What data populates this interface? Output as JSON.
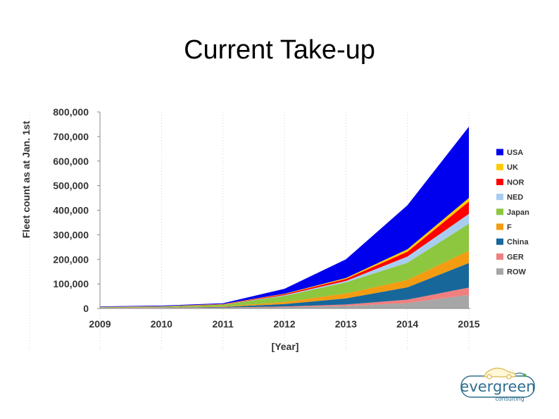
{
  "slide": {
    "title": "Current Take-up"
  },
  "logo": {
    "wordmark": "evergreen",
    "sub": "consulting",
    "icon": "car-icon",
    "colors": {
      "text": "#2f6f8f",
      "car": "#d9b84a",
      "plug": "#4caf50"
    }
  },
  "chart_data": {
    "type": "area",
    "stacked": true,
    "title": "",
    "xlabel": "[Year]",
    "ylabel": "Fleet count as at Jan. 1st",
    "x": [
      "2009",
      "2010",
      "2011",
      "2012",
      "2013",
      "2014",
      "2015"
    ],
    "ylim": [
      0,
      800000
    ],
    "yticks": [
      "0",
      "100,000",
      "200,000",
      "300,000",
      "400,000",
      "500,000",
      "600,000",
      "700,000",
      "800,000"
    ],
    "grid": "vertical dotted",
    "legend": "right",
    "series": [
      {
        "name": "ROW",
        "color": "#a6a6a6",
        "values": [
          2000,
          2500,
          3000,
          5000,
          10000,
          22000,
          55000
        ]
      },
      {
        "name": "GER",
        "color": "#f08080",
        "values": [
          500,
          800,
          1000,
          3000,
          6000,
          14000,
          30000
        ]
      },
      {
        "name": "China",
        "color": "#17679a",
        "values": [
          500,
          800,
          2000,
          10000,
          25000,
          50000,
          100000
        ]
      },
      {
        "name": "F",
        "color": "#f39c12",
        "values": [
          500,
          800,
          2000,
          8000,
          20000,
          30000,
          50000
        ]
      },
      {
        "name": "Japan",
        "color": "#8dc63f",
        "values": [
          2000,
          3000,
          7000,
          25000,
          45000,
          70000,
          110000
        ]
      },
      {
        "name": "NED",
        "color": "#a9cdf0",
        "values": [
          100,
          200,
          500,
          3000,
          6000,
          25000,
          40000
        ]
      },
      {
        "name": "NOR",
        "color": "#ff0000",
        "values": [
          500,
          800,
          1500,
          4000,
          8000,
          20000,
          50000
        ]
      },
      {
        "name": "UK",
        "color": "#ffcc00",
        "values": [
          200,
          300,
          1000,
          2000,
          4000,
          10000,
          15000
        ]
      },
      {
        "name": "USA",
        "color": "#0000ee",
        "values": [
          2000,
          2500,
          3000,
          20000,
          76000,
          179000,
          290000
        ]
      }
    ]
  }
}
